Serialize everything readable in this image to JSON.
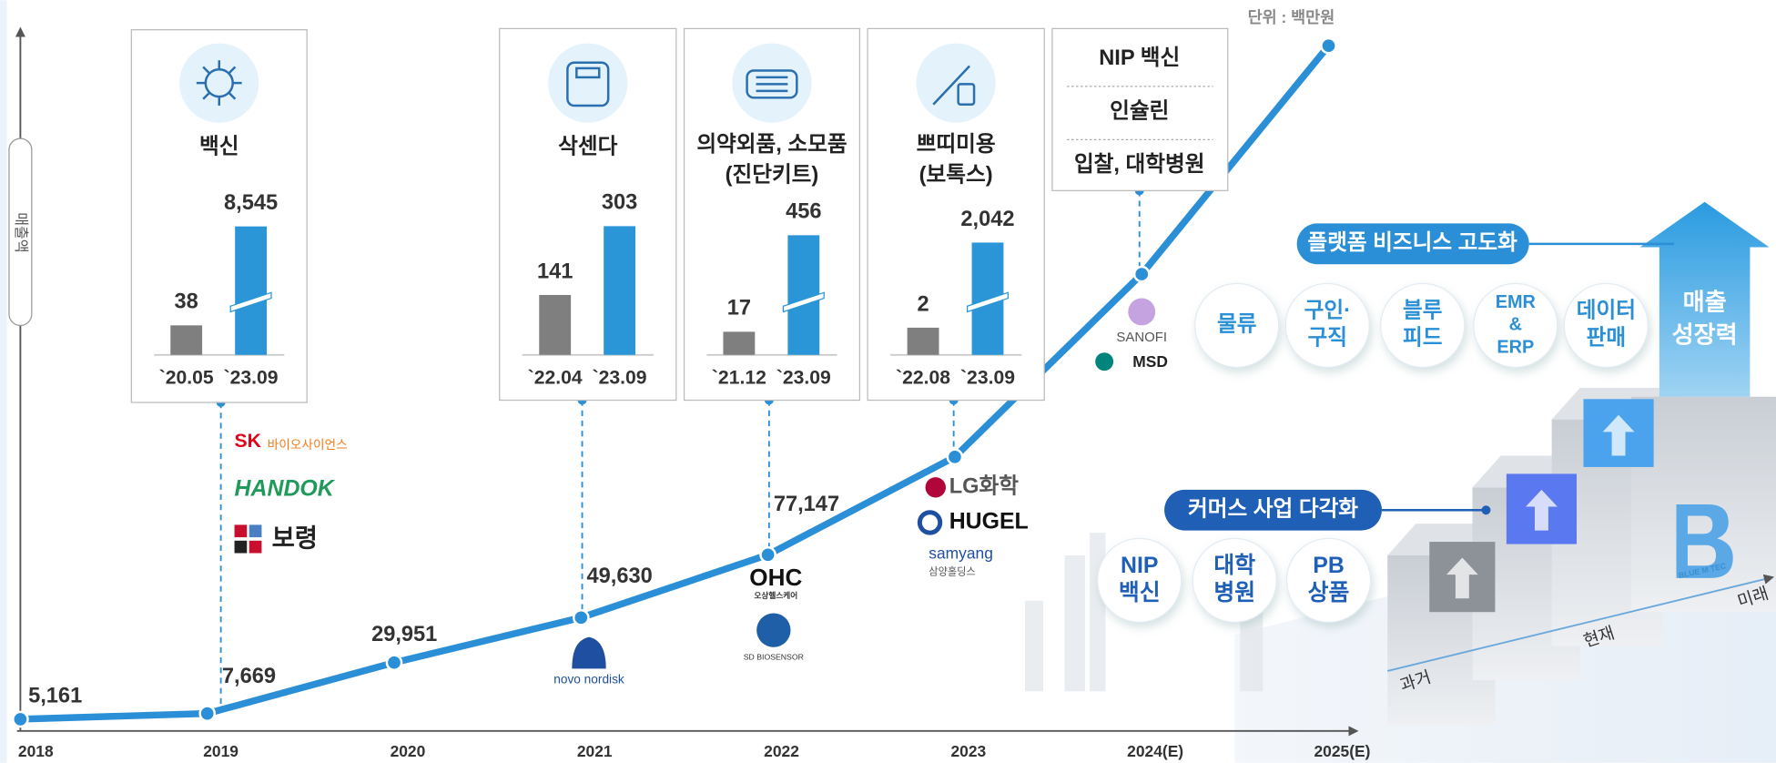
{
  "chart_data": [
    {
      "type": "line",
      "unit": "단위 : 백만원",
      "y_label": "매출액",
      "categories": [
        "2018",
        "2019",
        "2020",
        "2021",
        "2022",
        "2023",
        "2024(E)",
        "2025(E)"
      ],
      "values": [
        5161,
        7669,
        29951,
        49630,
        77147,
        120000,
        200000,
        300000
      ],
      "value_labels": [
        "5,161",
        "7,669",
        "29,951",
        "49,630",
        "77,147",
        null,
        null,
        null
      ],
      "color": "#2a8fd6",
      "ylim": [
        0,
        306000
      ]
    },
    {
      "type": "bar",
      "title": [
        "백신"
      ],
      "categories": [
        "`20.05",
        "`23.09"
      ],
      "values": [
        38,
        8545
      ],
      "value_labels": [
        "38",
        "8,545"
      ],
      "colors": [
        "#7f7f7f",
        "#2a96d8"
      ],
      "ylim": [
        0,
        8600
      ],
      "axis_break": [
        70,
        8000
      ]
    },
    {
      "type": "bar",
      "title": [
        "삭센다"
      ],
      "categories": [
        "`22.04",
        "`23.09"
      ],
      "values": [
        141,
        303
      ],
      "colors": [
        "#7f7f7f",
        "#2a96d8"
      ],
      "ylim": [
        0,
        320
      ]
    },
    {
      "type": "bar",
      "title": [
        "의약외품, 소모품",
        "(진단키트)"
      ],
      "categories": [
        "`21.12",
        "`23.09"
      ],
      "values": [
        17,
        456
      ],
      "colors": [
        "#7f7f7f",
        "#2a96d8"
      ],
      "ylim": [
        0,
        470
      ],
      "axis_break": [
        40,
        400
      ]
    },
    {
      "type": "bar",
      "title": [
        "쁘띠미용",
        "(보톡스)"
      ],
      "categories": [
        "`22.08",
        "`23.09"
      ],
      "values": [
        2,
        2042
      ],
      "value_labels": [
        "2",
        "2,042"
      ],
      "colors": [
        "#7f7f7f",
        "#2a96d8"
      ],
      "ylim": [
        0,
        2100
      ],
      "axis_break": [
        4,
        1900
      ]
    }
  ],
  "callout": [
    "NIP 백신",
    "인슐린",
    "입찰, 대학병원"
  ],
  "partners": [
    [
      "SK",
      "바이오사이언스",
      "HANDOK",
      "보령"
    ],
    [
      "novo nordisk"
    ],
    [
      "OHC",
      "오상헬스케어",
      "SD BIOSENSOR"
    ],
    [
      "LG화학",
      "HUGEL",
      "samyang",
      "삼양홀딩스"
    ],
    [
      "SANOFI",
      "MSD"
    ]
  ],
  "platform": {
    "banner": "플랫폼 비즈니스 고도화",
    "items": [
      [
        "물류"
      ],
      [
        "구인·",
        "구직"
      ],
      [
        "블루",
        "피드"
      ],
      [
        "EMR",
        "&",
        "ERP"
      ],
      [
        "데이터",
        "판매"
      ]
    ]
  },
  "commerce": {
    "banner": "커머스 사업 다각화",
    "items": [
      [
        "NIP",
        "백신"
      ],
      [
        "대학",
        "병원"
      ],
      [
        "PB",
        "상품"
      ]
    ]
  },
  "growth": [
    "매출",
    "성장력"
  ],
  "timeline": [
    "과거",
    "현재",
    "미래"
  ],
  "brand": "BLUE M TEC"
}
